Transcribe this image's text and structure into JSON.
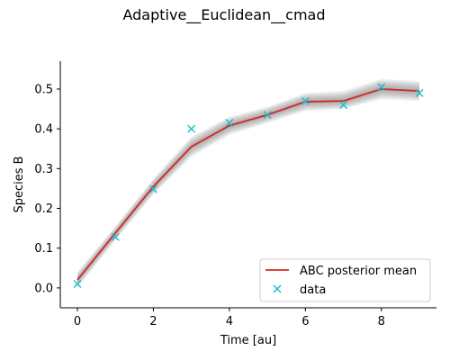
{
  "chart_data": {
    "type": "line",
    "title": "Adaptive__Euclidean__cmad",
    "xlabel": "Time [au]",
    "ylabel": "Species B",
    "xlim": [
      -0.45,
      9.45
    ],
    "ylim": [
      -0.05,
      0.57
    ],
    "xticks": [
      0,
      2,
      4,
      6,
      8
    ],
    "yticks": [
      0.0,
      0.1,
      0.2,
      0.3,
      0.4,
      0.5
    ],
    "xtick_labels": [
      "0",
      "2",
      "4",
      "6",
      "8"
    ],
    "ytick_labels": [
      "0.0",
      "0.1",
      "0.2",
      "0.3",
      "0.4",
      "0.5"
    ],
    "grid": false,
    "legend_position": "lower-right",
    "series": [
      {
        "name": "ABC posterior mean",
        "kind": "line",
        "color": "#d62728",
        "x": [
          0,
          1,
          2,
          3,
          4,
          5,
          6,
          7,
          8,
          9
        ],
        "y": [
          0.02,
          0.138,
          0.255,
          0.355,
          0.408,
          0.435,
          0.468,
          0.47,
          0.5,
          0.495
        ]
      },
      {
        "name": "data",
        "kind": "scatter",
        "marker": "x",
        "color": "#17becf",
        "x": [
          0,
          1,
          2,
          3,
          4,
          5,
          6,
          7,
          8,
          9
        ],
        "y": [
          0.01,
          0.128,
          0.248,
          0.4,
          0.415,
          0.435,
          0.47,
          0.46,
          0.505,
          0.49
        ]
      }
    ],
    "posterior_band": {
      "color": "#808080",
      "x": [
        0,
        1,
        2,
        3,
        4,
        5,
        6,
        7,
        8,
        9
      ],
      "lower": [
        0.0,
        0.12,
        0.235,
        0.33,
        0.385,
        0.415,
        0.445,
        0.45,
        0.475,
        0.47
      ],
      "upper": [
        0.04,
        0.155,
        0.275,
        0.38,
        0.43,
        0.455,
        0.49,
        0.495,
        0.525,
        0.52
      ]
    }
  }
}
